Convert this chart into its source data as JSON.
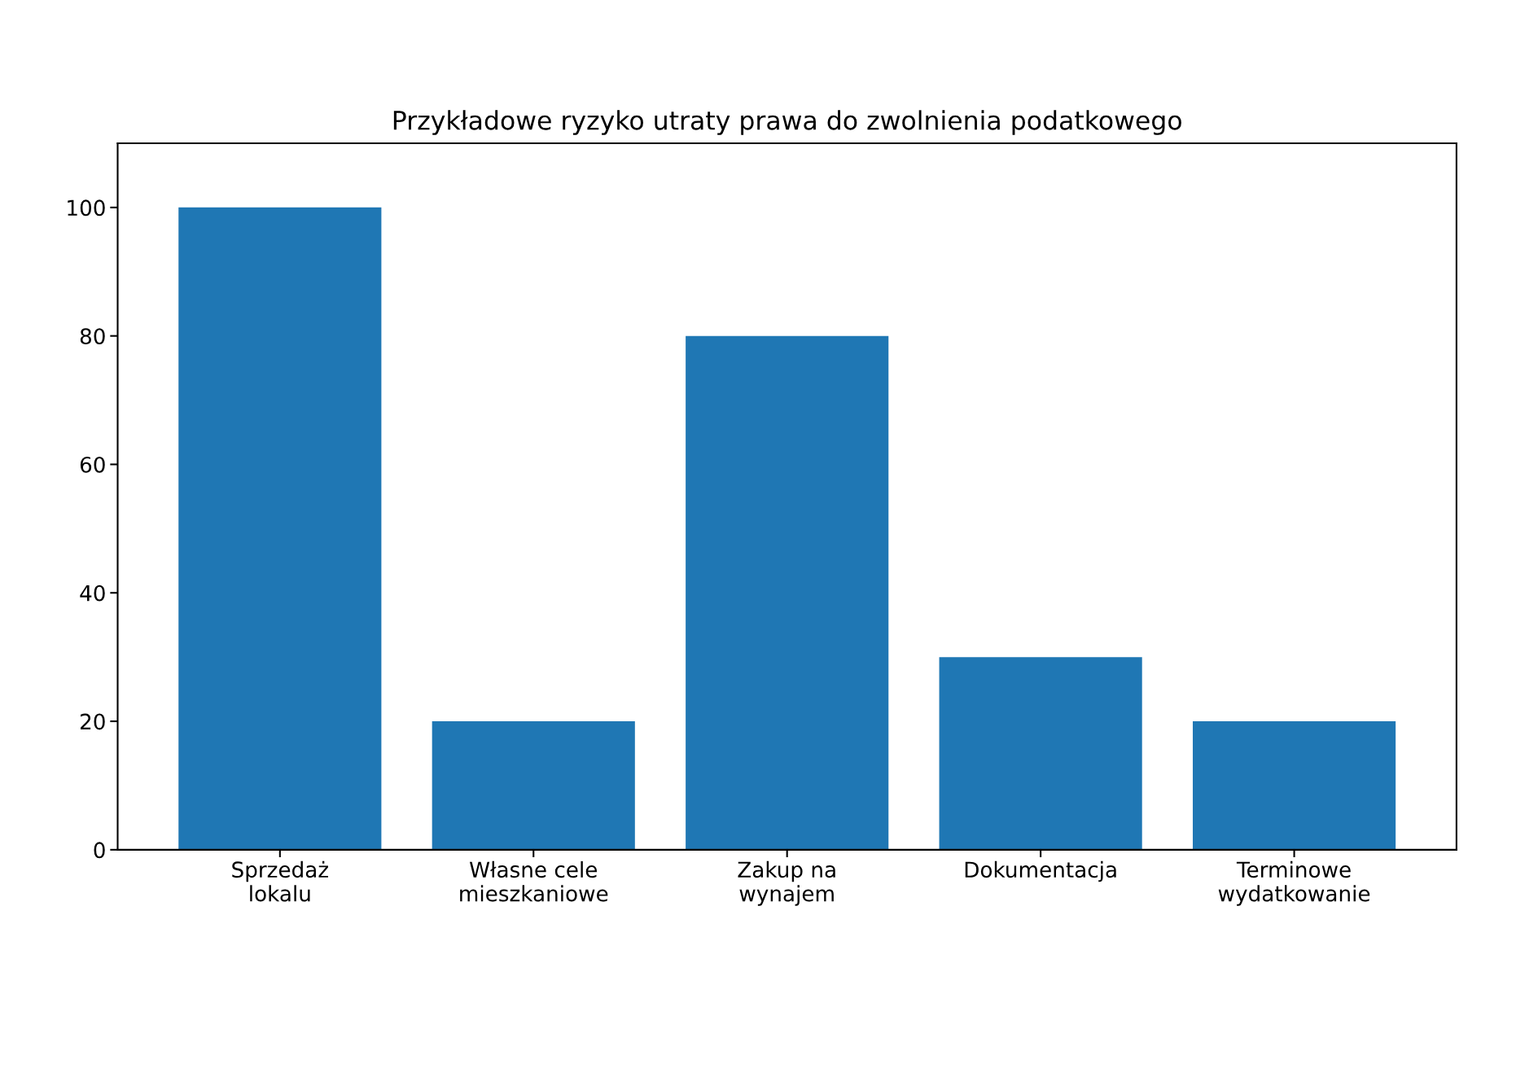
{
  "chart_data": {
    "type": "bar",
    "title": "Przykładowe ryzyko utraty prawa do zwolnienia podatkowego",
    "categories": [
      "Sprzedaż\nlokalu",
      "Własne cele\nmieszkaniowe",
      "Zakup na\nwynajem",
      "Dokumentacja",
      "Terminowe\nwydatkowanie"
    ],
    "values": [
      100,
      20,
      80,
      30,
      20
    ],
    "color": "#1f77b4",
    "ylim": [
      0,
      110
    ],
    "yticks": [
      0,
      20,
      40,
      60,
      80,
      100
    ],
    "grid": false
  }
}
